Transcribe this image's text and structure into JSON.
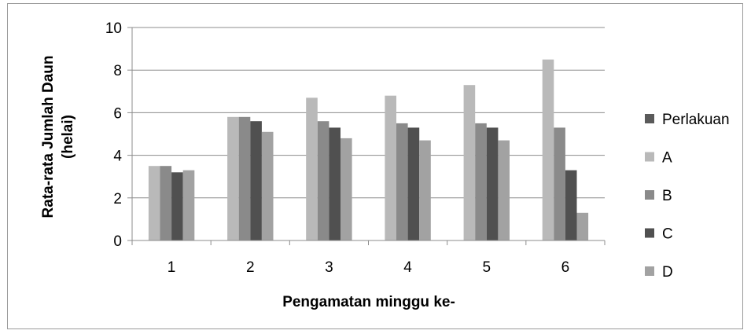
{
  "chart_data": {
    "type": "bar",
    "title": "",
    "xlabel": "Pengamatan minggu ke-",
    "ylabel_line1": "Rata-rata Jumlah Daun",
    "ylabel_line2": "(helai)",
    "categories": [
      "1",
      "2",
      "3",
      "4",
      "5",
      "6"
    ],
    "ylim": [
      0,
      10
    ],
    "yticks": [
      0,
      2,
      4,
      6,
      8,
      10
    ],
    "grid": true,
    "legend_placement": "right",
    "legend_title": "Perlakuan",
    "legend_title_color": "#5a5a5a",
    "series": [
      {
        "name": "A",
        "color": "#b9b9b9",
        "values": [
          3.5,
          5.8,
          6.7,
          6.8,
          7.3,
          8.5
        ]
      },
      {
        "name": "B",
        "color": "#8a8a8a",
        "values": [
          3.5,
          5.8,
          5.6,
          5.5,
          5.5,
          5.3
        ]
      },
      {
        "name": "C",
        "color": "#505050",
        "values": [
          3.2,
          5.6,
          5.3,
          5.3,
          5.3,
          3.3
        ]
      },
      {
        "name": "D",
        "color": "#a2a2a2",
        "values": [
          3.3,
          5.1,
          4.8,
          4.7,
          4.7,
          1.3
        ]
      }
    ]
  }
}
